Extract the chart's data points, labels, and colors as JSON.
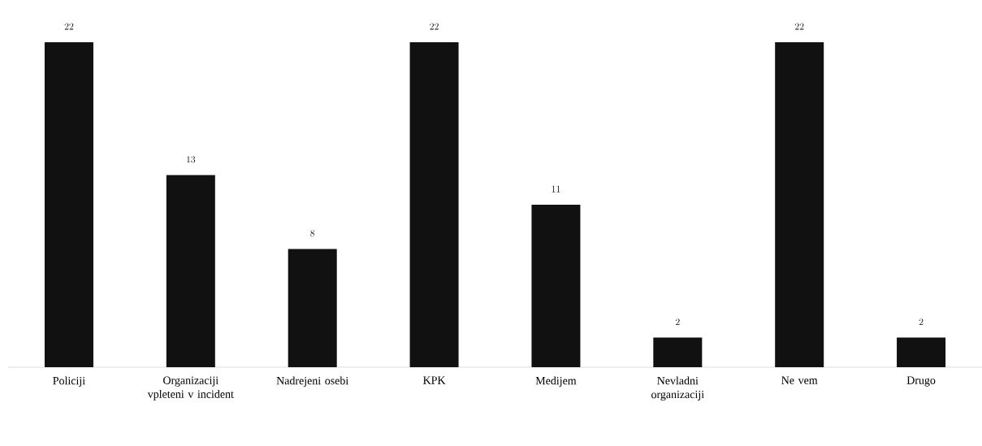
{
  "chart_data": {
    "type": "bar",
    "categories": [
      "Policiji",
      "Organizaciji vpleteni v incident",
      "Nadrejeni osebi",
      "KPK",
      "Medijem",
      "Nevladni organizaciji",
      "Ne vem",
      "Drugo"
    ],
    "values": [
      22,
      13,
      8,
      22,
      11,
      2,
      22,
      2
    ],
    "color": "#111111",
    "data_labels": true
  }
}
